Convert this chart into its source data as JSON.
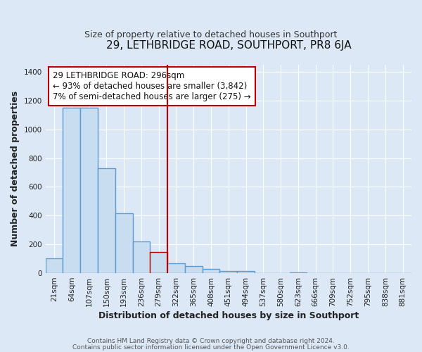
{
  "title": "29, LETHBRIDGE ROAD, SOUTHPORT, PR8 6JA",
  "subtitle": "Size of property relative to detached houses in Southport",
  "xlabel": "Distribution of detached houses by size in Southport",
  "ylabel": "Number of detached properties",
  "footer_line1": "Contains HM Land Registry data © Crown copyright and database right 2024.",
  "footer_line2": "Contains public sector information licensed under the Open Government Licence v3.0.",
  "bin_labels": [
    "21sqm",
    "64sqm",
    "107sqm",
    "150sqm",
    "193sqm",
    "236sqm",
    "279sqm",
    "322sqm",
    "365sqm",
    "408sqm",
    "451sqm",
    "494sqm",
    "537sqm",
    "580sqm",
    "623sqm",
    "666sqm",
    "709sqm",
    "752sqm",
    "795sqm",
    "838sqm",
    "881sqm"
  ],
  "bar_values": [
    105,
    1150,
    1150,
    730,
    415,
    220,
    145,
    70,
    50,
    30,
    15,
    15,
    0,
    0,
    5,
    0,
    0,
    0,
    0,
    0,
    0
  ],
  "bar_color": "#c8ddf0",
  "bar_edge_color": "#5b9bd5",
  "highlight_bar_index": 6,
  "vline_color": "#c00000",
  "annotation_title": "29 LETHBRIDGE ROAD: 296sqm",
  "annotation_line1": "← 93% of detached houses are smaller (3,842)",
  "annotation_line2": "7% of semi-detached houses are larger (275) →",
  "annotation_box_edge": "#c00000",
  "ylim": [
    0,
    1450
  ],
  "yticks": [
    0,
    200,
    400,
    600,
    800,
    1000,
    1200,
    1400
  ],
  "fig_bg_color": "#dce8f5",
  "plot_bg_color": "#dce8f5",
  "grid_color": "#ffffff",
  "title_fontsize": 11,
  "subtitle_fontsize": 9,
  "axis_label_fontsize": 9,
  "tick_fontsize": 7.5,
  "annotation_fontsize": 8.5,
  "footer_fontsize": 6.5
}
